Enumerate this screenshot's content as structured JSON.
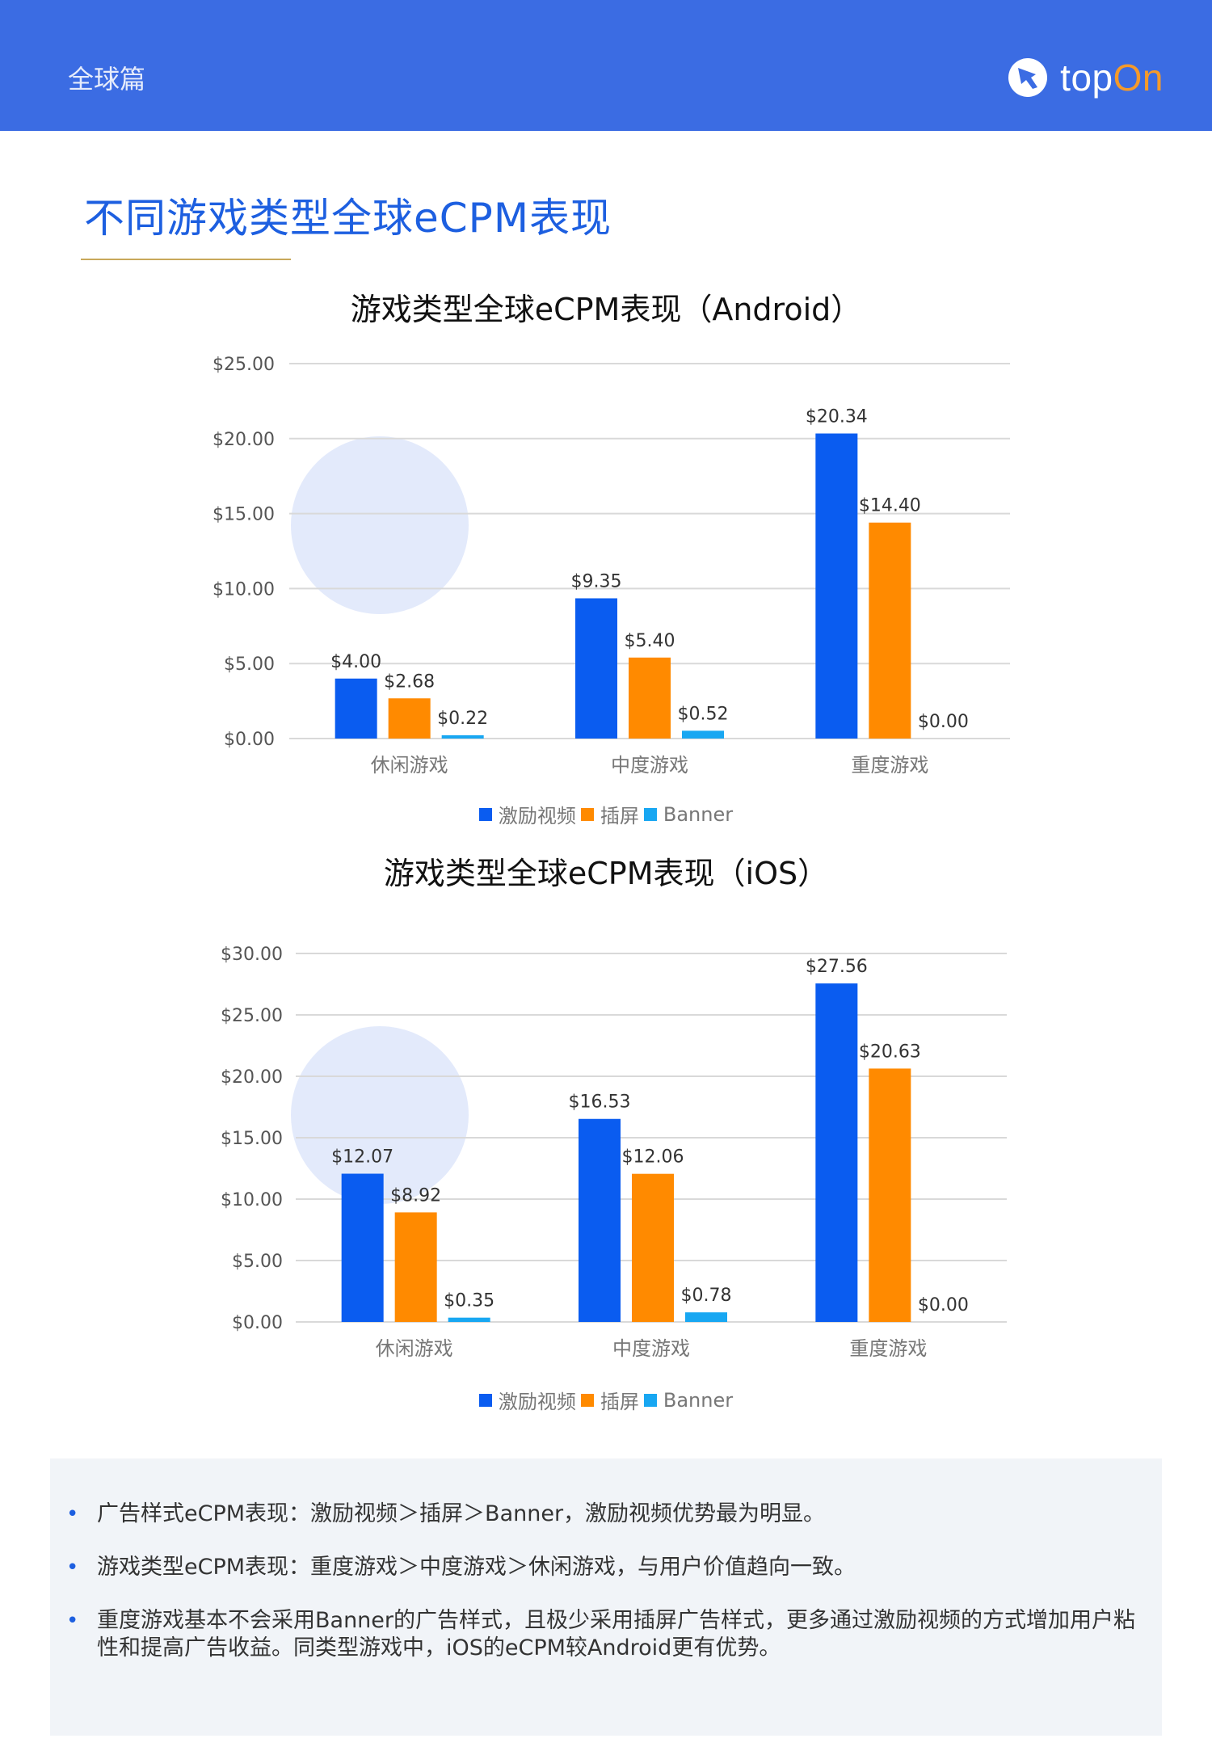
{
  "header": {
    "section": "全球篇",
    "brand_top": "top",
    "brand_on": "On",
    "logo_icon": "topon-logo-icon"
  },
  "page_title": "不同游戏类型全球eCPM表现",
  "colors": {
    "header_bg": "#3b6ce3",
    "title_blue": "#1d5fe0",
    "rewarded_video": "#0a5cf0",
    "interstitial": "#ff8a00",
    "banner": "#18a7f2",
    "brand_orange": "#f59a2a"
  },
  "chart_data": [
    {
      "type": "bar",
      "title": "游戏类型全球eCPM表现（Android）",
      "categories": [
        "休闲游戏",
        "中度游戏",
        "重度游戏"
      ],
      "series": [
        {
          "name": "激励视频",
          "values": [
            4.0,
            9.35,
            20.34
          ],
          "labels": [
            "$4.00",
            "$9.35",
            "$20.34"
          ]
        },
        {
          "name": "插屏",
          "values": [
            2.68,
            5.4,
            14.4
          ],
          "labels": [
            "$2.68",
            "$5.40",
            "$14.40"
          ]
        },
        {
          "name": "Banner",
          "values": [
            0.22,
            0.52,
            0.0
          ],
          "labels": [
            "$0.22",
            "$0.52",
            "$0.00"
          ]
        }
      ],
      "ylim": [
        0,
        25
      ],
      "yticks": [
        0,
        5,
        10,
        15,
        20,
        25
      ],
      "ytick_labels": [
        "$0.00",
        "$5.00",
        "$10.00",
        "$15.00",
        "$20.00",
        "$25.00"
      ],
      "grid": true,
      "legend": "bottom"
    },
    {
      "type": "bar",
      "title": "游戏类型全球eCPM表现（iOS）",
      "categories": [
        "休闲游戏",
        "中度游戏",
        "重度游戏"
      ],
      "series": [
        {
          "name": "激励视频",
          "values": [
            12.07,
            16.53,
            27.56
          ],
          "labels": [
            "$12.07",
            "$16.53",
            "$27.56"
          ]
        },
        {
          "name": "插屏",
          "values": [
            8.92,
            12.06,
            20.63
          ],
          "labels": [
            "$8.92",
            "$12.06",
            "$20.63"
          ]
        },
        {
          "name": "Banner",
          "values": [
            0.35,
            0.78,
            0.0
          ],
          "labels": [
            "$0.35",
            "$0.78",
            "$0.00"
          ]
        }
      ],
      "ylim": [
        0,
        30
      ],
      "yticks": [
        0,
        5,
        10,
        15,
        20,
        25,
        30
      ],
      "ytick_labels": [
        "$0.00",
        "$5.00",
        "$10.00",
        "$15.00",
        "$20.00",
        "$25.00",
        "$30.00"
      ],
      "grid": true,
      "legend": "bottom"
    }
  ],
  "notes": [
    "广告样式eCPM表现：激励视频＞插屏＞Banner，激励视频优势最为明显。",
    "游戏类型eCPM表现：重度游戏＞中度游戏＞休闲游戏，与用户价值趋向一致。",
    "重度游戏基本不会采用Banner的广告样式，且极少采用插屏广告样式，更多通过激励视频的方式增加用户粘性和提高广告收益。同类型游戏中，iOS的eCPM较Android更有优势。"
  ]
}
